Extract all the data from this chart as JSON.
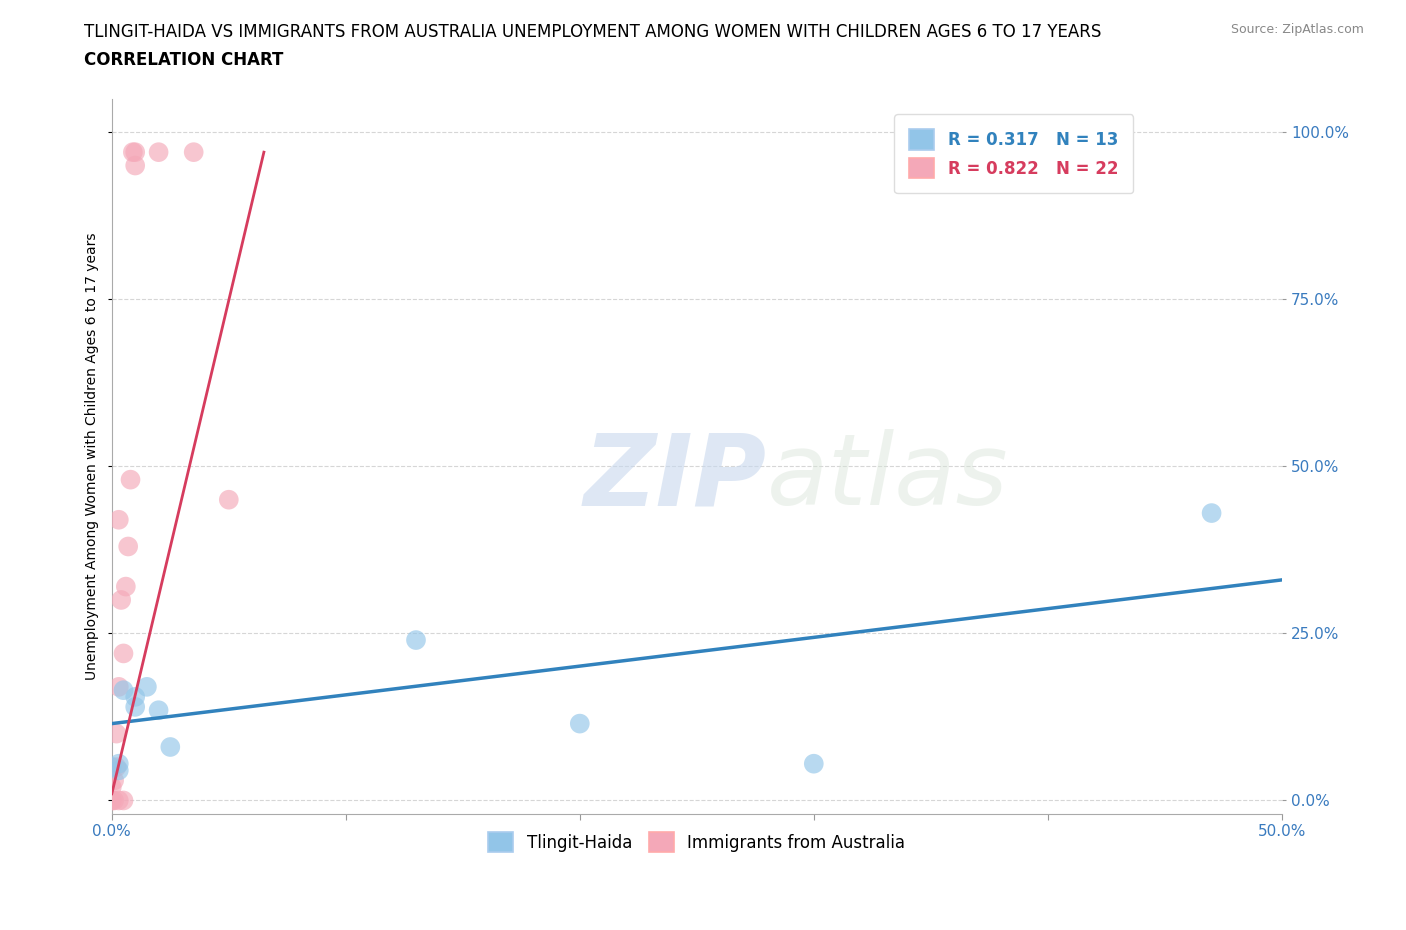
{
  "title_line1": "TLINGIT-HAIDA VS IMMIGRANTS FROM AUSTRALIA UNEMPLOYMENT AMONG WOMEN WITH CHILDREN AGES 6 TO 17 YEARS",
  "title_line2": "CORRELATION CHART",
  "source": "Source: ZipAtlas.com",
  "ylabel": "Unemployment Among Women with Children Ages 6 to 17 years",
  "xlim": [
    0.0,
    0.5
  ],
  "ylim": [
    -0.02,
    1.05
  ],
  "xticks": [
    0.0,
    0.1,
    0.2,
    0.3,
    0.4,
    0.5
  ],
  "xtick_labels": [
    "0.0%",
    "",
    "",
    "",
    "",
    "50.0%"
  ],
  "yticks": [
    0.0,
    0.25,
    0.5,
    0.75,
    1.0
  ],
  "ytick_labels": [
    "0.0%",
    "25.0%",
    "50.0%",
    "75.0%",
    "100.0%"
  ],
  "blue_R": 0.317,
  "blue_N": 13,
  "pink_R": 0.822,
  "pink_N": 22,
  "blue_color": "#92c5e8",
  "pink_color": "#f4a8b8",
  "blue_line_color": "#3182bd",
  "pink_line_color": "#d63c5e",
  "grid_color": "#cccccc",
  "background_color": "#ffffff",
  "watermark_zip": "ZIP",
  "watermark_atlas": "atlas",
  "blue_scatter_x": [
    0.005,
    0.01,
    0.02,
    0.025,
    0.01,
    0.015,
    0.0,
    0.003,
    0.003,
    0.47,
    0.3,
    0.13,
    0.2
  ],
  "blue_scatter_y": [
    0.165,
    0.155,
    0.135,
    0.08,
    0.14,
    0.17,
    0.05,
    0.055,
    0.045,
    0.43,
    0.055,
    0.24,
    0.115
  ],
  "pink_scatter_x": [
    0.0,
    0.0,
    0.0,
    0.001,
    0.001,
    0.002,
    0.002,
    0.003,
    0.003,
    0.003,
    0.004,
    0.005,
    0.005,
    0.006,
    0.007,
    0.008,
    0.009,
    0.01,
    0.01,
    0.02,
    0.035,
    0.05
  ],
  "pink_scatter_y": [
    0.0,
    0.0,
    0.02,
    0.0,
    0.03,
    0.05,
    0.1,
    0.0,
    0.17,
    0.42,
    0.3,
    0.0,
    0.22,
    0.32,
    0.38,
    0.48,
    0.97,
    0.95,
    0.97,
    0.97,
    0.97,
    0.45
  ],
  "blue_trend_x": [
    0.0,
    0.5
  ],
  "blue_trend_y": [
    0.115,
    0.33
  ],
  "pink_trend_x": [
    0.0,
    0.065
  ],
  "pink_trend_y": [
    0.01,
    0.97
  ],
  "title_fontsize": 12,
  "subtitle_fontsize": 12,
  "axis_label_fontsize": 10,
  "tick_fontsize": 11,
  "legend_fontsize": 12
}
